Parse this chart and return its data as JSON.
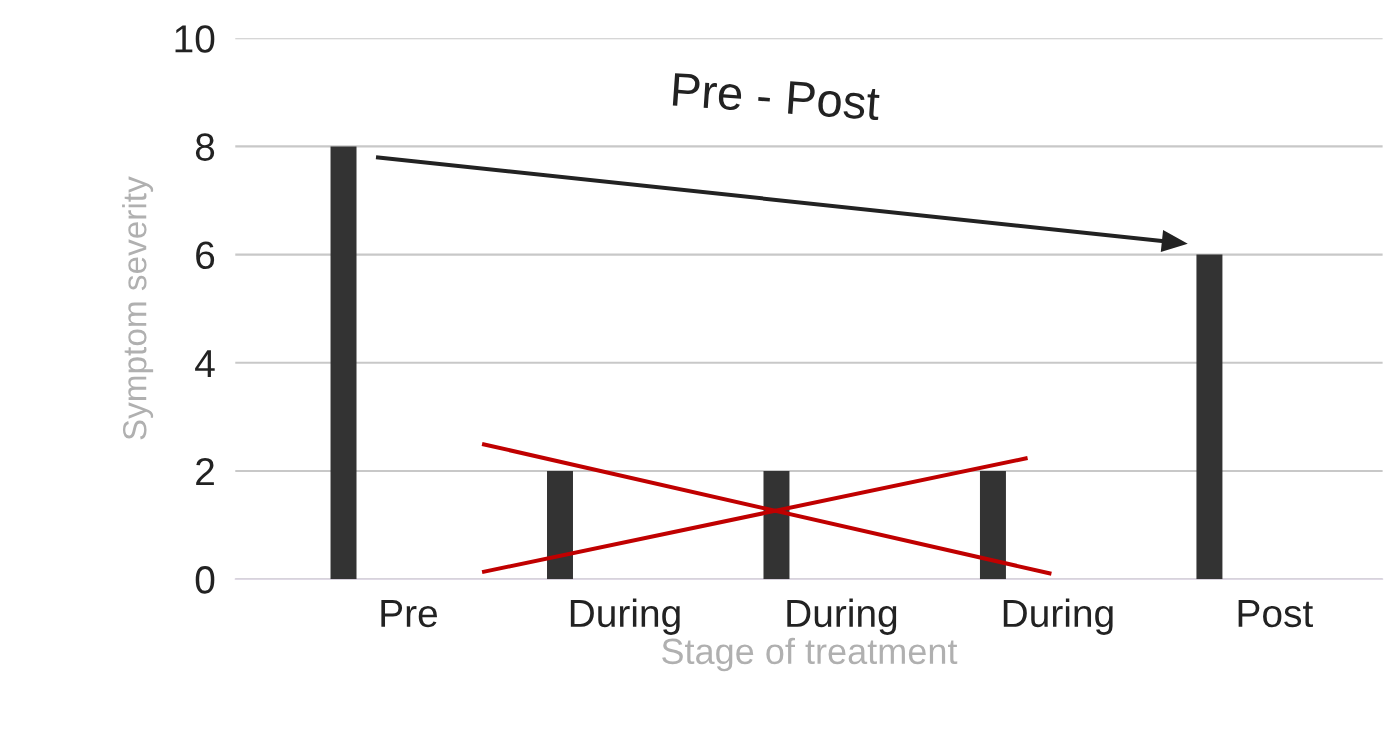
{
  "chart_data": {
    "type": "bar",
    "xlabel": "Stage of treatment",
    "ylabel": "Symptom severity",
    "categories": [
      "Pre",
      "During",
      "During",
      "During",
      "Post"
    ],
    "values": [
      8,
      2,
      2,
      2,
      6
    ],
    "color": "#333333",
    "ylim": [
      0,
      10
    ],
    "yticks": [
      0,
      2,
      4,
      6,
      8,
      10
    ],
    "grid": "y",
    "annotations": [
      "Pre - Post"
    ]
  }
}
